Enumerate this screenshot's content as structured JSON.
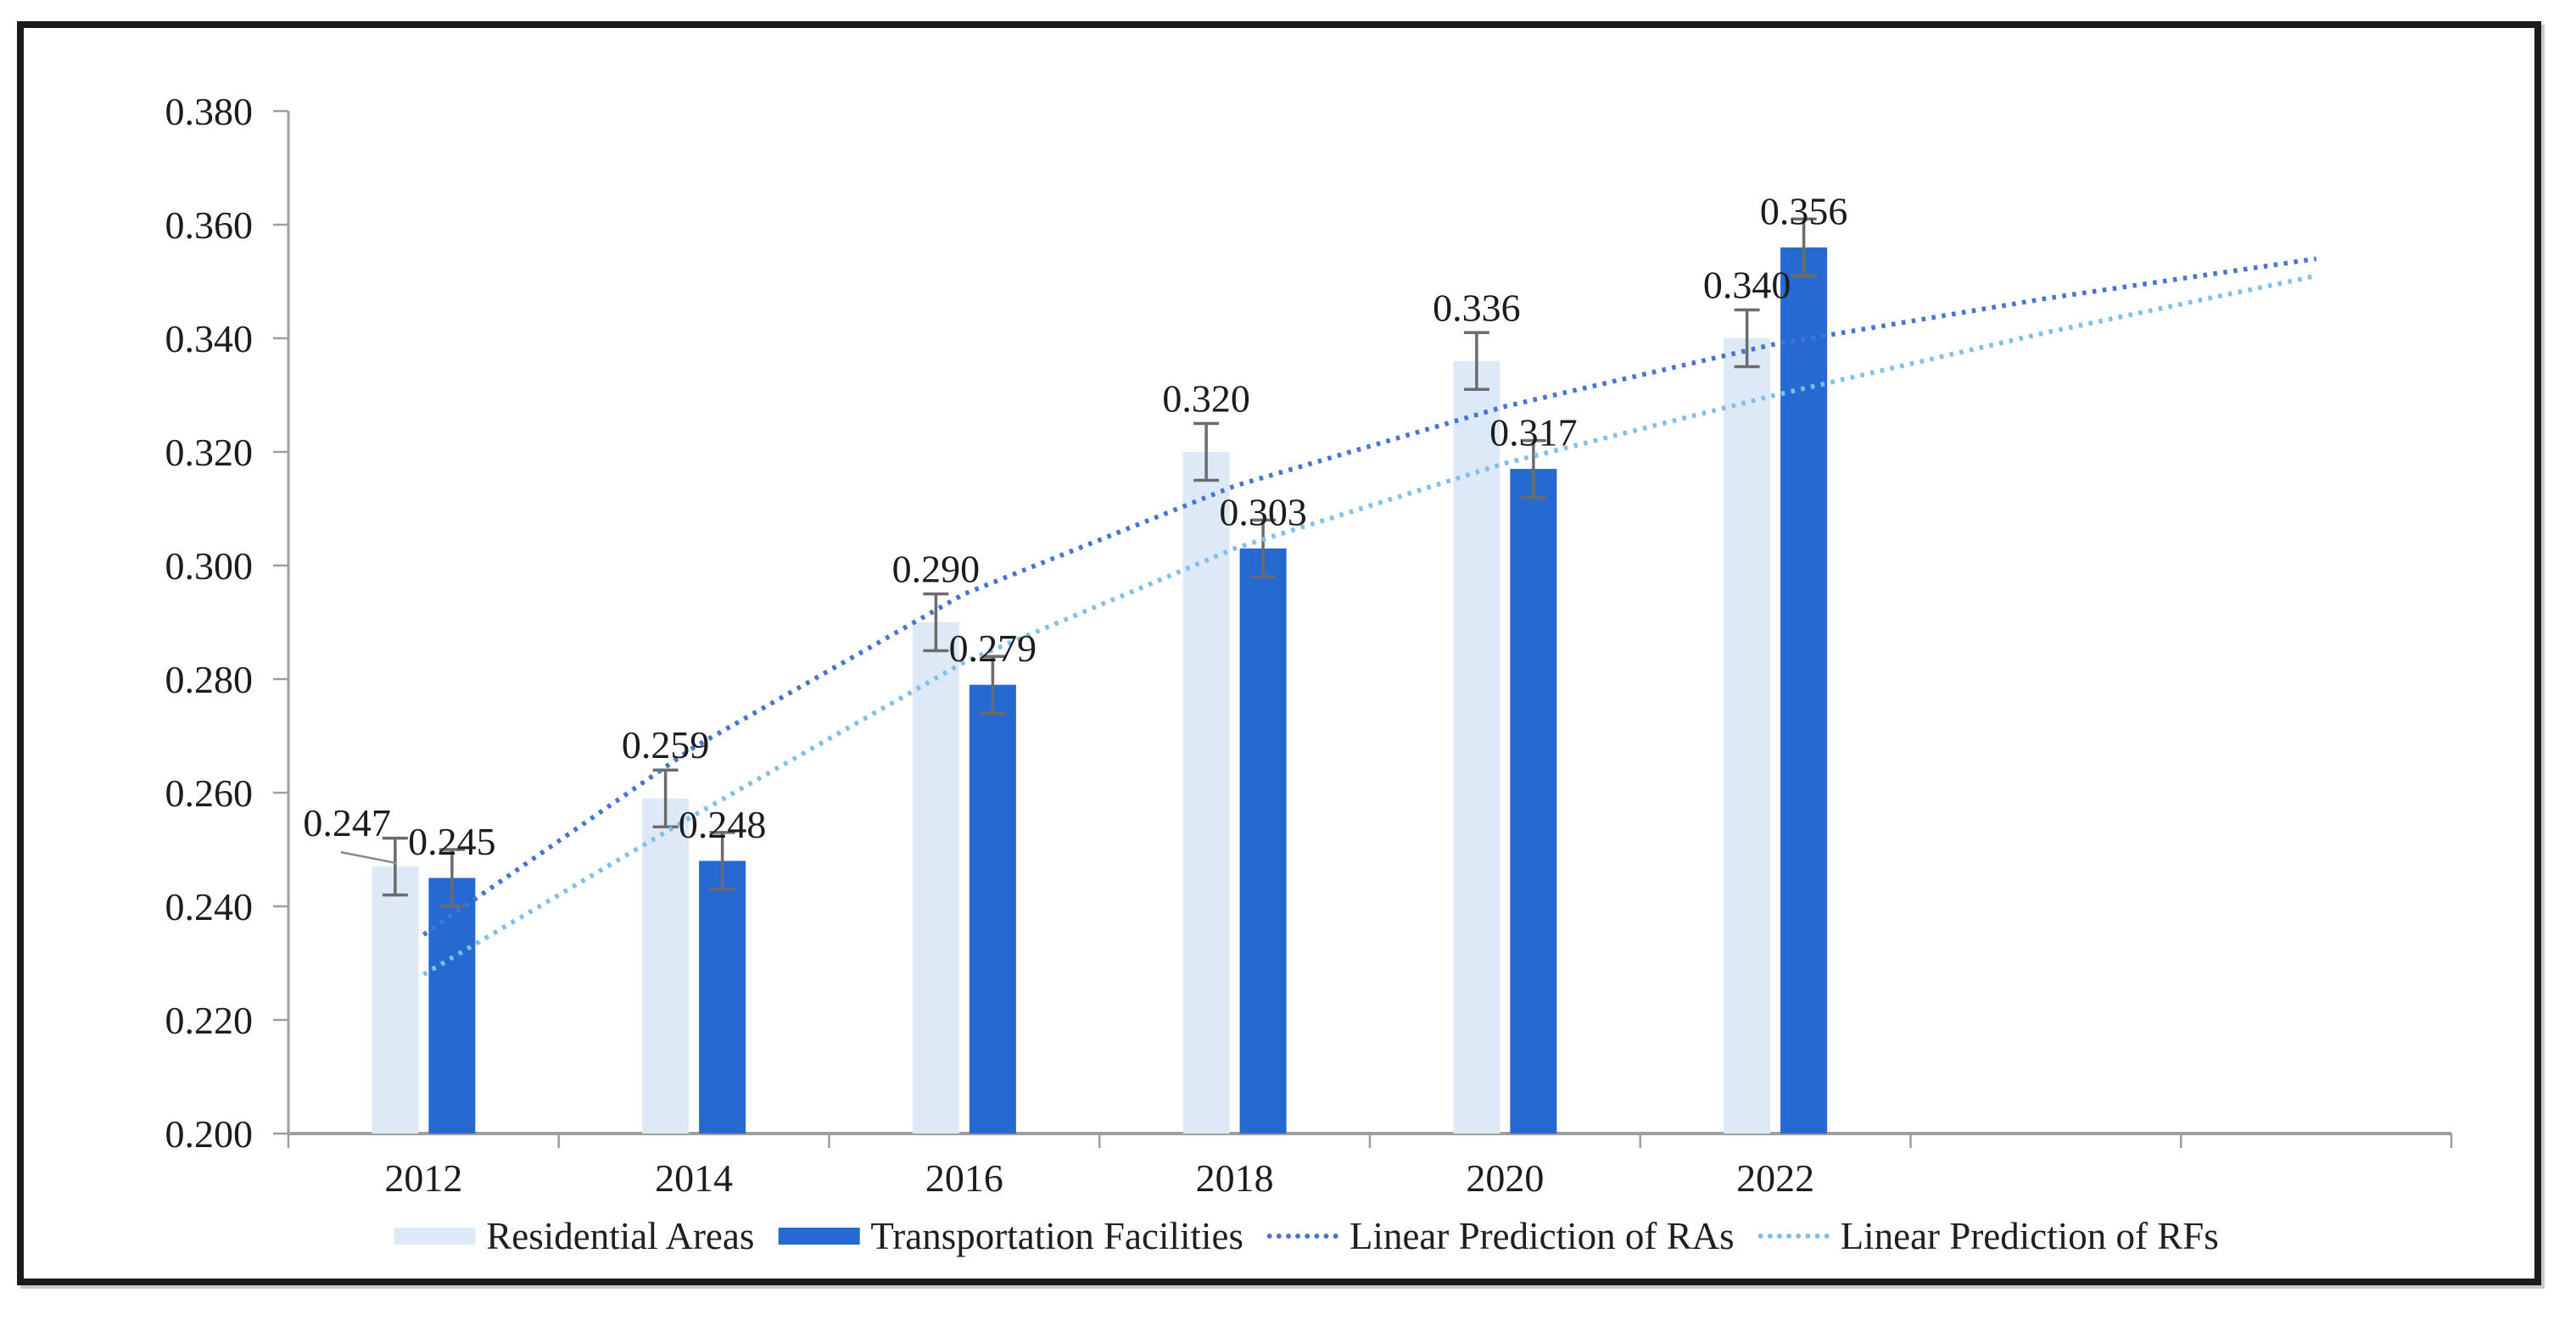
{
  "figure": {
    "background": "#ffffff",
    "frame_color": "#1b1b1b",
    "frame_shadow": "#c9c9c9"
  },
  "legend": {
    "position": "bottom",
    "items": [
      {
        "label": "Residential Areas",
        "swatch": "bar",
        "color": "#dde9f7"
      },
      {
        "label": "Transportation Facilities",
        "swatch": "bar",
        "color": "#2569d1"
      },
      {
        "label": "Linear Prediction of RAs",
        "swatch": "dotted-line",
        "color": "#4674d2"
      },
      {
        "label": "Linear Prediction of RFs",
        "swatch": "dotted-line",
        "color": "#7fbfea"
      }
    ]
  },
  "chart_data": {
    "type": "bar",
    "title": "",
    "xlabel": "",
    "ylabel": "",
    "grid": false,
    "categories": [
      "2012",
      "2014",
      "2016",
      "2018",
      "2020",
      "2022"
    ],
    "series": [
      {
        "name": "Residential Areas",
        "color": "#dde9f7",
        "values": [
          0.247,
          0.259,
          0.29,
          0.32,
          0.336,
          0.34
        ],
        "labels": [
          "0.247",
          "0.259",
          "0.290",
          "0.320",
          "0.336",
          "0.340"
        ]
      },
      {
        "name": "Transportation Facilities",
        "color": "#2569d1",
        "values": [
          0.245,
          0.248,
          0.279,
          0.303,
          0.317,
          0.356
        ],
        "labels": [
          "0.245",
          "0.248",
          "0.279",
          "0.303",
          "0.317",
          "0.356"
        ]
      }
    ],
    "error_bar_half_height": 0.005,
    "error_bar_color": "#6b6b6b",
    "trendlines": [
      {
        "name": "Linear Prediction of RAs",
        "color": "#4674d2",
        "values": [
          0.235,
          0.268,
          0.295,
          0.314,
          0.328,
          0.339,
          0.347,
          0.354
        ]
      },
      {
        "name": "Linear Prediction of RFs",
        "color": "#7fbfea",
        "values": [
          0.228,
          0.256,
          0.283,
          0.303,
          0.318,
          0.33,
          0.341,
          0.351
        ]
      }
    ],
    "y_axis": {
      "min": 0.2,
      "max": 0.38,
      "step": 0.02,
      "tick_labels": [
        "0.200",
        "0.220",
        "0.240",
        "0.260",
        "0.280",
        "0.300",
        "0.320",
        "0.340",
        "0.360",
        "0.380"
      ],
      "axis_color": "#9e9e9e",
      "text_color": "#1c1c1c"
    },
    "x_axis": {
      "slots": 8,
      "tick_labels": [
        "2012",
        "2014",
        "2016",
        "2018",
        "2020",
        "2022"
      ],
      "note_visible_empty_forecast_slots": 2
    },
    "label_callout": {
      "series": 0,
      "index": 0
    }
  }
}
